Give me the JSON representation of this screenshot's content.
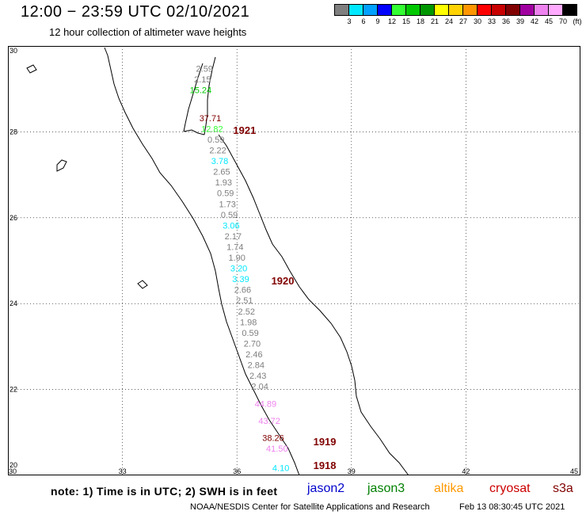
{
  "header": {
    "title": "12:00 − 23:59 UTC 02/10/2021",
    "subtitle": "12 hour collection of altimeter wave heights"
  },
  "legend": {
    "labels": [
      "3",
      "6",
      "9",
      "12",
      "15",
      "18",
      "21",
      "24",
      "27",
      "30",
      "33",
      "36",
      "39",
      "42",
      "45",
      "70",
      "(ft)"
    ],
    "colors": [
      "#7f7f7f",
      "#00e8ff",
      "#00a0ff",
      "#0000ff",
      "#33ff33",
      "#00c800",
      "#009600",
      "#ffff00",
      "#ffd200",
      "#ff9600",
      "#ff0000",
      "#c80000",
      "#800000",
      "#a000a0",
      "#ee82ee",
      "#ffaaff",
      "#000000"
    ]
  },
  "axes": {
    "x_ticks": [
      "30",
      "33",
      "36",
      "39",
      "42",
      "45"
    ],
    "y_ticks": [
      "20",
      "22",
      "24",
      "26",
      "28",
      "30"
    ]
  },
  "chart_data": {
    "type": "scatter",
    "title": "12:00 − 23:59 UTC 02/10/2021",
    "subtitle": "12 hour collection of altimeter wave heights",
    "units": "ft",
    "xlim": [
      30,
      45
    ],
    "ylim": [
      20,
      30
    ],
    "grid": true,
    "points": [
      {
        "lon": 35.15,
        "lat": 29.4,
        "label": "2.59",
        "color": "#7f7f7f"
      },
      {
        "lon": 35.1,
        "lat": 29.15,
        "label": "2.15",
        "color": "#7f7f7f"
      },
      {
        "lon": 35.05,
        "lat": 28.9,
        "label": "15.24",
        "color": "#00c800"
      },
      {
        "lon": 35.3,
        "lat": 28.25,
        "label": "37.71",
        "color": "#800000"
      },
      {
        "lon": 35.35,
        "lat": 28.0,
        "label": "12.82",
        "color": "#33ff33"
      },
      {
        "lon": 35.45,
        "lat": 27.75,
        "label": "0.59",
        "color": "#7f7f7f"
      },
      {
        "lon": 35.5,
        "lat": 27.5,
        "label": "2.22",
        "color": "#7f7f7f"
      },
      {
        "lon": 35.55,
        "lat": 27.25,
        "label": "3.78",
        "color": "#00e8ff"
      },
      {
        "lon": 35.6,
        "lat": 27.0,
        "label": "2.65",
        "color": "#7f7f7f"
      },
      {
        "lon": 35.65,
        "lat": 26.75,
        "label": "1.93",
        "color": "#7f7f7f"
      },
      {
        "lon": 35.7,
        "lat": 26.5,
        "label": "0.59",
        "color": "#7f7f7f"
      },
      {
        "lon": 35.75,
        "lat": 26.25,
        "label": "1.73",
        "color": "#7f7f7f"
      },
      {
        "lon": 35.8,
        "lat": 26.0,
        "label": "0.59",
        "color": "#7f7f7f"
      },
      {
        "lon": 35.85,
        "lat": 25.75,
        "label": "3.06",
        "color": "#00e8ff"
      },
      {
        "lon": 35.9,
        "lat": 25.5,
        "label": "2.17",
        "color": "#7f7f7f"
      },
      {
        "lon": 35.95,
        "lat": 25.25,
        "label": "1.74",
        "color": "#7f7f7f"
      },
      {
        "lon": 36.0,
        "lat": 25.0,
        "label": "1.90",
        "color": "#7f7f7f"
      },
      {
        "lon": 36.05,
        "lat": 24.75,
        "label": "3.20",
        "color": "#00e8ff"
      },
      {
        "lon": 36.1,
        "lat": 24.5,
        "label": "3.39",
        "color": "#00e8ff"
      },
      {
        "lon": 36.15,
        "lat": 24.25,
        "label": "2.66",
        "color": "#7f7f7f"
      },
      {
        "lon": 36.2,
        "lat": 24.0,
        "label": "2.51",
        "color": "#7f7f7f"
      },
      {
        "lon": 36.25,
        "lat": 23.75,
        "label": "2.52",
        "color": "#7f7f7f"
      },
      {
        "lon": 36.3,
        "lat": 23.5,
        "label": "1.98",
        "color": "#7f7f7f"
      },
      {
        "lon": 36.35,
        "lat": 23.25,
        "label": "0.59",
        "color": "#7f7f7f"
      },
      {
        "lon": 36.4,
        "lat": 23.0,
        "label": "2.70",
        "color": "#7f7f7f"
      },
      {
        "lon": 36.45,
        "lat": 22.75,
        "label": "2.46",
        "color": "#7f7f7f"
      },
      {
        "lon": 36.5,
        "lat": 22.5,
        "label": "2.84",
        "color": "#7f7f7f"
      },
      {
        "lon": 36.55,
        "lat": 22.25,
        "label": "2.43",
        "color": "#7f7f7f"
      },
      {
        "lon": 36.6,
        "lat": 22.0,
        "label": "2.04",
        "color": "#7f7f7f"
      },
      {
        "lon": 36.75,
        "lat": 21.6,
        "label": "44.89",
        "color": "#ee82ee"
      },
      {
        "lon": 36.85,
        "lat": 21.2,
        "label": "43.72",
        "color": "#ee82ee"
      },
      {
        "lon": 36.95,
        "lat": 20.8,
        "label": "38.26",
        "color": "#800000"
      },
      {
        "lon": 37.05,
        "lat": 20.55,
        "label": "41.50",
        "color": "#ee82ee"
      },
      {
        "lon": 37.15,
        "lat": 20.1,
        "label": "4.10",
        "color": "#00e8ff"
      }
    ],
    "hour_labels": [
      {
        "lon": 36.2,
        "lat": 27.95,
        "label": "1921"
      },
      {
        "lon": 37.2,
        "lat": 24.45,
        "label": "1920"
      },
      {
        "lon": 38.3,
        "lat": 20.7,
        "label": "1919"
      },
      {
        "lon": 38.3,
        "lat": 20.15,
        "label": "1918"
      }
    ],
    "hour_label_color": "#800000"
  },
  "footer": {
    "note": "note:  1) Time is in UTC;  2) SWH is in feet",
    "satellites": [
      {
        "name": "jason2",
        "color": "#0000cc"
      },
      {
        "name": "jason3",
        "color": "#008000"
      },
      {
        "name": "altika",
        "color": "#ff9900"
      },
      {
        "name": "cryosat",
        "color": "#cc0000"
      },
      {
        "name": "s3a",
        "color": "#800000"
      }
    ],
    "credit": "NOAA/NESDIS Center for Satellite Applications and Research",
    "timestamp": "Feb 13 08:30:45 UTC 2021"
  }
}
